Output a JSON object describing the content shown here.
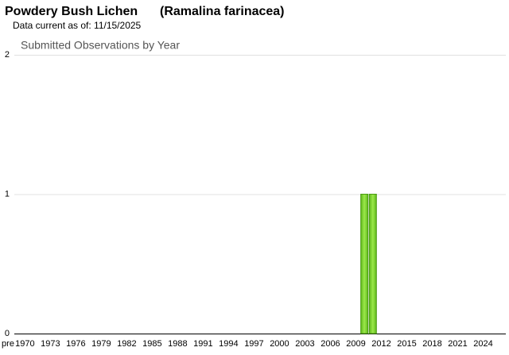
{
  "header": {
    "common_name": "Powdery Bush Lichen",
    "scientific_name": "(Ramalina farinacea)",
    "data_date": "Data current as of: 11/15/2025"
  },
  "chart_data": {
    "type": "bar",
    "title": "Submitted Observations by Year",
    "categories": [
      "pre",
      null,
      "1970",
      null,
      null,
      "1973",
      null,
      null,
      "1976",
      null,
      null,
      "1979",
      null,
      null,
      "1982",
      null,
      null,
      "1985",
      null,
      null,
      "1988",
      null,
      null,
      "1991",
      null,
      null,
      "1994",
      null,
      null,
      "1997",
      null,
      null,
      "2000",
      null,
      null,
      "2003",
      null,
      null,
      "2006",
      null,
      null,
      "2009",
      null,
      null,
      "2012",
      null,
      null,
      "2015",
      null,
      null,
      "2018",
      null,
      null,
      "2021",
      null,
      null,
      "2024",
      null,
      null
    ],
    "values": [
      0,
      0,
      0,
      0,
      0,
      0,
      0,
      0,
      0,
      0,
      0,
      0,
      0,
      0,
      0,
      0,
      0,
      0,
      0,
      0,
      0,
      0,
      0,
      0,
      0,
      0,
      0,
      0,
      0,
      0,
      0,
      0,
      0,
      0,
      0,
      0,
      0,
      0,
      0,
      0,
      0,
      0,
      1,
      1,
      0,
      0,
      0,
      0,
      0,
      0,
      0,
      0,
      0,
      0,
      0,
      0,
      0,
      0,
      0
    ],
    "color": "#7fd82c",
    "ylim": [
      0,
      2
    ],
    "yticks": [
      0,
      1,
      2
    ],
    "grid": true
  }
}
